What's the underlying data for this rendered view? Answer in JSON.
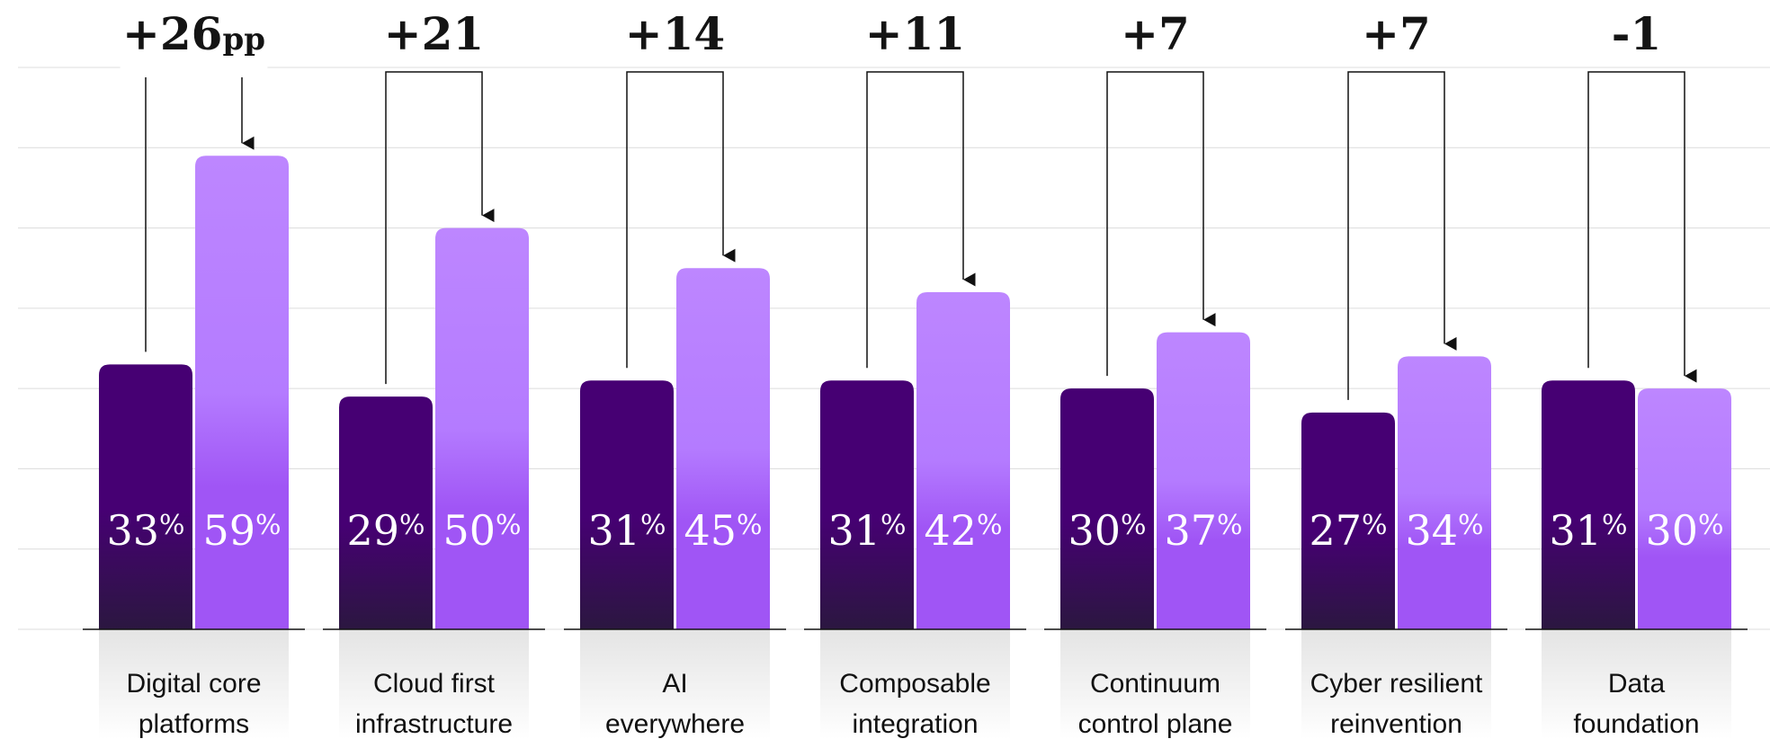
{
  "chart_data": {
    "type": "bar",
    "categories": [
      [
        "Digital core",
        "platforms"
      ],
      [
        "Cloud first",
        "infrastructure"
      ],
      [
        "AI",
        "everywhere"
      ],
      [
        "Composable",
        "integration"
      ],
      [
        "Continuum",
        "control plane"
      ],
      [
        "Cyber resilient",
        "reinvention"
      ],
      [
        "Data",
        "foundation"
      ]
    ],
    "series": [
      {
        "values": [
          33,
          29,
          31,
          31,
          30,
          27,
          31
        ],
        "color": "#460073"
      },
      {
        "values": [
          59,
          50,
          45,
          42,
          37,
          34,
          30
        ],
        "color": "#B884FF"
      }
    ],
    "value_suffix": "%",
    "deltas": [
      "+26",
      "+21",
      "+14",
      "+11",
      "+7",
      "+7",
      "-1"
    ],
    "delta_unit": "pp",
    "ylim": [
      0,
      70
    ],
    "grid": true
  }
}
